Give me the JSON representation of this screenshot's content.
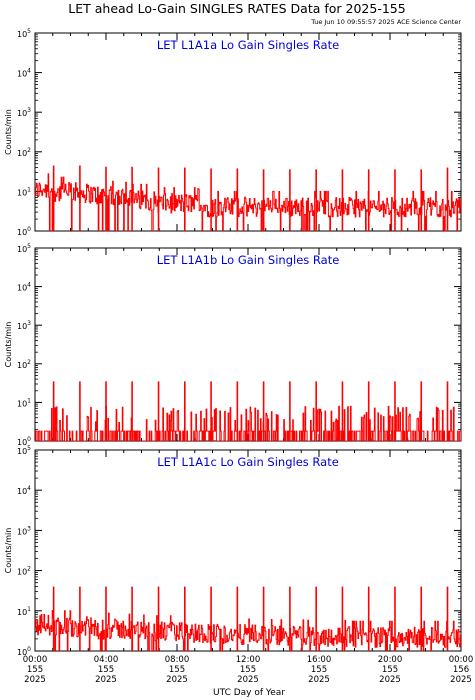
{
  "figure": {
    "title": "LET ahead Lo-Gain SINGLES RATES Data for 2025-155",
    "timestamp": "Tue Jun 10 09:55:57 2025 ACE Science Center",
    "xlabel": "UTC Day of Year"
  },
  "colors": {
    "trace": "#ff0000",
    "panel_title": "#0000dd",
    "axis": "#000000"
  },
  "chart_data": [
    {
      "type": "line",
      "title": "LET L1A1a Lo Gain Singles Rate",
      "ylabel": "Counts/min",
      "yscale": "log",
      "ylim": [
        1,
        100000
      ],
      "xlim": [
        0,
        24
      ],
      "yticks": [
        {
          "value": 1,
          "label": "10",
          "exp": "0"
        },
        {
          "value": 10,
          "label": "10",
          "exp": "1"
        },
        {
          "value": 100,
          "label": "10",
          "exp": "2"
        },
        {
          "value": 1000,
          "label": "10",
          "exp": "3"
        },
        {
          "value": 10000,
          "label": "10",
          "exp": "4"
        },
        {
          "value": 100000,
          "label": "10",
          "exp": "5"
        }
      ],
      "series": [
        {
          "values": [
            {
              "x": 0,
              "y": 10
            },
            {
              "x": 0.5,
              "y": 12
            },
            {
              "x": 1,
              "y": 10
            },
            {
              "x": 1.5,
              "y": 9
            },
            {
              "x": 2,
              "y": 10
            },
            {
              "x": 2.5,
              "y": 9
            },
            {
              "x": 3,
              "y": 9
            },
            {
              "x": 3.5,
              "y": 8
            },
            {
              "x": 4,
              "y": 8
            },
            {
              "x": 4.5,
              "y": 7
            },
            {
              "x": 5,
              "y": 7
            },
            {
              "x": 5.5,
              "y": 6
            },
            {
              "x": 6,
              "y": 6
            },
            {
              "x": 6.5,
              "y": 6
            },
            {
              "x": 7,
              "y": 5
            },
            {
              "x": 7.5,
              "y": 5
            },
            {
              "x": 8,
              "y": 5
            },
            {
              "x": 8.5,
              "y": 5
            },
            {
              "x": 9,
              "y": 5
            },
            {
              "x": 9.5,
              "y": 4
            },
            {
              "x": 10,
              "y": 4
            },
            {
              "x": 10.5,
              "y": 4
            },
            {
              "x": 11,
              "y": 4
            },
            {
              "x": 11.5,
              "y": 4
            },
            {
              "x": 12,
              "y": 4
            },
            {
              "x": 12.5,
              "y": 4
            },
            {
              "x": 13,
              "y": 4
            },
            {
              "x": 13.5,
              "y": 4
            },
            {
              "x": 14,
              "y": 4
            },
            {
              "x": 14.5,
              "y": 4
            },
            {
              "x": 15,
              "y": 4
            },
            {
              "x": 15.5,
              "y": 4
            },
            {
              "x": 16,
              "y": 4
            },
            {
              "x": 16.5,
              "y": 4
            },
            {
              "x": 17,
              "y": 4
            },
            {
              "x": 17.5,
              "y": 4
            },
            {
              "x": 18,
              "y": 4
            },
            {
              "x": 18.5,
              "y": 4
            },
            {
              "x": 19,
              "y": 4
            },
            {
              "x": 19.5,
              "y": 4
            },
            {
              "x": 20,
              "y": 4
            },
            {
              "x": 20.5,
              "y": 4
            },
            {
              "x": 21,
              "y": 4
            },
            {
              "x": 21.5,
              "y": 4
            },
            {
              "x": 22,
              "y": 4
            },
            {
              "x": 22.5,
              "y": 4
            },
            {
              "x": 23,
              "y": 4
            },
            {
              "x": 23.5,
              "y": 4
            },
            {
              "x": 24,
              "y": 4
            }
          ],
          "spikes": [
            {
              "x": 1.05,
              "y": 45
            },
            {
              "x": 2.53,
              "y": 45
            },
            {
              "x": 4.0,
              "y": 42
            },
            {
              "x": 5.47,
              "y": 42
            },
            {
              "x": 6.96,
              "y": 40
            },
            {
              "x": 8.44,
              "y": 40
            },
            {
              "x": 9.92,
              "y": 38
            },
            {
              "x": 11.4,
              "y": 38
            },
            {
              "x": 12.88,
              "y": 36
            },
            {
              "x": 14.36,
              "y": 36
            },
            {
              "x": 15.84,
              "y": 36
            },
            {
              "x": 17.32,
              "y": 36
            },
            {
              "x": 18.8,
              "y": 36
            },
            {
              "x": 20.28,
              "y": 36
            },
            {
              "x": 21.76,
              "y": 36
            },
            {
              "x": 23.24,
              "y": 40
            }
          ]
        }
      ]
    },
    {
      "type": "line",
      "title": "LET L1A1b Lo Gain Singles Rate",
      "ylabel": "Counts/min",
      "yscale": "log",
      "ylim": [
        1,
        100000
      ],
      "xlim": [
        0,
        24
      ],
      "yticks": [
        {
          "value": 1,
          "label": "10",
          "exp": "0"
        },
        {
          "value": 10,
          "label": "10",
          "exp": "1"
        },
        {
          "value": 100,
          "label": "10",
          "exp": "2"
        },
        {
          "value": 1000,
          "label": "10",
          "exp": "3"
        },
        {
          "value": 10000,
          "label": "10",
          "exp": "4"
        },
        {
          "value": 100000,
          "label": "10",
          "exp": "5"
        }
      ],
      "series": [
        {
          "values": [
            {
              "x": 0,
              "y": 1.6
            },
            {
              "x": 1,
              "y": 1.6
            },
            {
              "x": 2,
              "y": 1.5
            },
            {
              "x": 3,
              "y": 1.5
            },
            {
              "x": 4,
              "y": 1.5
            },
            {
              "x": 5,
              "y": 1.4
            },
            {
              "x": 6,
              "y": 1.4
            },
            {
              "x": 7,
              "y": 1.3
            },
            {
              "x": 8,
              "y": 1.3
            },
            {
              "x": 9,
              "y": 1.3
            },
            {
              "x": 10,
              "y": 1.2
            },
            {
              "x": 11,
              "y": 1.2
            },
            {
              "x": 12,
              "y": 1.2
            },
            {
              "x": 13,
              "y": 1.2
            },
            {
              "x": 14,
              "y": 1.2
            },
            {
              "x": 15,
              "y": 1.2
            },
            {
              "x": 16,
              "y": 1.2
            },
            {
              "x": 17,
              "y": 1.2
            },
            {
              "x": 18,
              "y": 1.2
            },
            {
              "x": 19,
              "y": 1.2
            },
            {
              "x": 20,
              "y": 1.2
            },
            {
              "x": 21,
              "y": 1.2
            },
            {
              "x": 22,
              "y": 1.2
            },
            {
              "x": 23,
              "y": 1.2
            },
            {
              "x": 24,
              "y": 1.2
            }
          ],
          "spikes": [
            {
              "x": 1.05,
              "y": 35
            },
            {
              "x": 2.53,
              "y": 35
            },
            {
              "x": 4.0,
              "y": 35
            },
            {
              "x": 5.47,
              "y": 35
            },
            {
              "x": 6.96,
              "y": 35
            },
            {
              "x": 8.44,
              "y": 35
            },
            {
              "x": 9.92,
              "y": 35
            },
            {
              "x": 11.4,
              "y": 35
            },
            {
              "x": 12.88,
              "y": 35
            },
            {
              "x": 14.36,
              "y": 35
            },
            {
              "x": 15.84,
              "y": 35
            },
            {
              "x": 17.32,
              "y": 35
            },
            {
              "x": 18.8,
              "y": 35
            },
            {
              "x": 20.28,
              "y": 35
            },
            {
              "x": 21.76,
              "y": 35
            },
            {
              "x": 23.24,
              "y": 35
            }
          ]
        }
      ]
    },
    {
      "type": "line",
      "title": "LET L1A1c Lo Gain Singles Rate",
      "ylabel": "Counts/min",
      "yscale": "log",
      "ylim": [
        1,
        100000
      ],
      "xlim": [
        0,
        24
      ],
      "yticks": [
        {
          "value": 1,
          "label": "10",
          "exp": "0"
        },
        {
          "value": 10,
          "label": "10",
          "exp": "1"
        },
        {
          "value": 100,
          "label": "10",
          "exp": "2"
        },
        {
          "value": 1000,
          "label": "10",
          "exp": "3"
        },
        {
          "value": 10000,
          "label": "10",
          "exp": "4"
        },
        {
          "value": 100000,
          "label": "10",
          "exp": "5"
        }
      ],
      "xticks": [
        {
          "value": 0,
          "lines": [
            "00:00",
            "155",
            "2025"
          ]
        },
        {
          "value": 4,
          "lines": [
            "04:00",
            "155",
            "2025"
          ]
        },
        {
          "value": 8,
          "lines": [
            "08:00",
            "155",
            "2025"
          ]
        },
        {
          "value": 12,
          "lines": [
            "12:00",
            "155",
            "2025"
          ]
        },
        {
          "value": 16,
          "lines": [
            "16:00",
            "155",
            "2025"
          ]
        },
        {
          "value": 20,
          "lines": [
            "20:00",
            "155",
            "2025"
          ]
        },
        {
          "value": 24,
          "lines": [
            "00:00",
            "156",
            "2025"
          ]
        }
      ],
      "series": [
        {
          "values": [
            {
              "x": 0,
              "y": 4
            },
            {
              "x": 0.5,
              "y": 5
            },
            {
              "x": 1,
              "y": 4
            },
            {
              "x": 1.5,
              "y": 4
            },
            {
              "x": 2,
              "y": 4
            },
            {
              "x": 2.5,
              "y": 4
            },
            {
              "x": 3,
              "y": 4
            },
            {
              "x": 3.5,
              "y": 3.5
            },
            {
              "x": 4,
              "y": 3.5
            },
            {
              "x": 4.5,
              "y": 3.5
            },
            {
              "x": 5,
              "y": 3.5
            },
            {
              "x": 5.5,
              "y": 3.2
            },
            {
              "x": 6,
              "y": 3.2
            },
            {
              "x": 6.5,
              "y": 3
            },
            {
              "x": 7,
              "y": 3
            },
            {
              "x": 7.5,
              "y": 3
            },
            {
              "x": 8,
              "y": 3
            },
            {
              "x": 8.5,
              "y": 3
            },
            {
              "x": 9,
              "y": 2.8
            },
            {
              "x": 9.5,
              "y": 2.8
            },
            {
              "x": 10,
              "y": 2.8
            },
            {
              "x": 10.5,
              "y": 2.6
            },
            {
              "x": 11,
              "y": 2.6
            },
            {
              "x": 11.5,
              "y": 2.6
            },
            {
              "x": 12,
              "y": 2.5
            },
            {
              "x": 12.5,
              "y": 2.5
            },
            {
              "x": 13,
              "y": 2.5
            },
            {
              "x": 13.5,
              "y": 2.4
            },
            {
              "x": 14,
              "y": 2.4
            },
            {
              "x": 14.5,
              "y": 2.4
            },
            {
              "x": 15,
              "y": 2.4
            },
            {
              "x": 15.5,
              "y": 2.3
            },
            {
              "x": 16,
              "y": 2.3
            },
            {
              "x": 16.5,
              "y": 2.3
            },
            {
              "x": 17,
              "y": 2.3
            },
            {
              "x": 17.5,
              "y": 2.3
            },
            {
              "x": 18,
              "y": 2.2
            },
            {
              "x": 18.5,
              "y": 2.2
            },
            {
              "x": 19,
              "y": 2.2
            },
            {
              "x": 19.5,
              "y": 2.2
            },
            {
              "x": 20,
              "y": 2.2
            },
            {
              "x": 20.5,
              "y": 2.2
            },
            {
              "x": 21,
              "y": 2.2
            },
            {
              "x": 21.5,
              "y": 2.2
            },
            {
              "x": 22,
              "y": 2.2
            },
            {
              "x": 22.5,
              "y": 2.2
            },
            {
              "x": 23,
              "y": 2.2
            },
            {
              "x": 23.5,
              "y": 2.2
            },
            {
              "x": 24,
              "y": 2.2
            }
          ],
          "spikes": [
            {
              "x": 1.05,
              "y": 40
            },
            {
              "x": 2.53,
              "y": 40
            },
            {
              "x": 4.0,
              "y": 40
            },
            {
              "x": 5.47,
              "y": 40
            },
            {
              "x": 6.96,
              "y": 40
            },
            {
              "x": 8.44,
              "y": 40
            },
            {
              "x": 9.92,
              "y": 40
            },
            {
              "x": 11.4,
              "y": 40
            },
            {
              "x": 12.88,
              "y": 40
            },
            {
              "x": 14.36,
              "y": 40
            },
            {
              "x": 15.84,
              "y": 40
            },
            {
              "x": 17.32,
              "y": 40
            },
            {
              "x": 18.8,
              "y": 40
            },
            {
              "x": 20.28,
              "y": 40
            },
            {
              "x": 21.76,
              "y": 40
            },
            {
              "x": 23.24,
              "y": 40
            }
          ]
        }
      ]
    }
  ]
}
